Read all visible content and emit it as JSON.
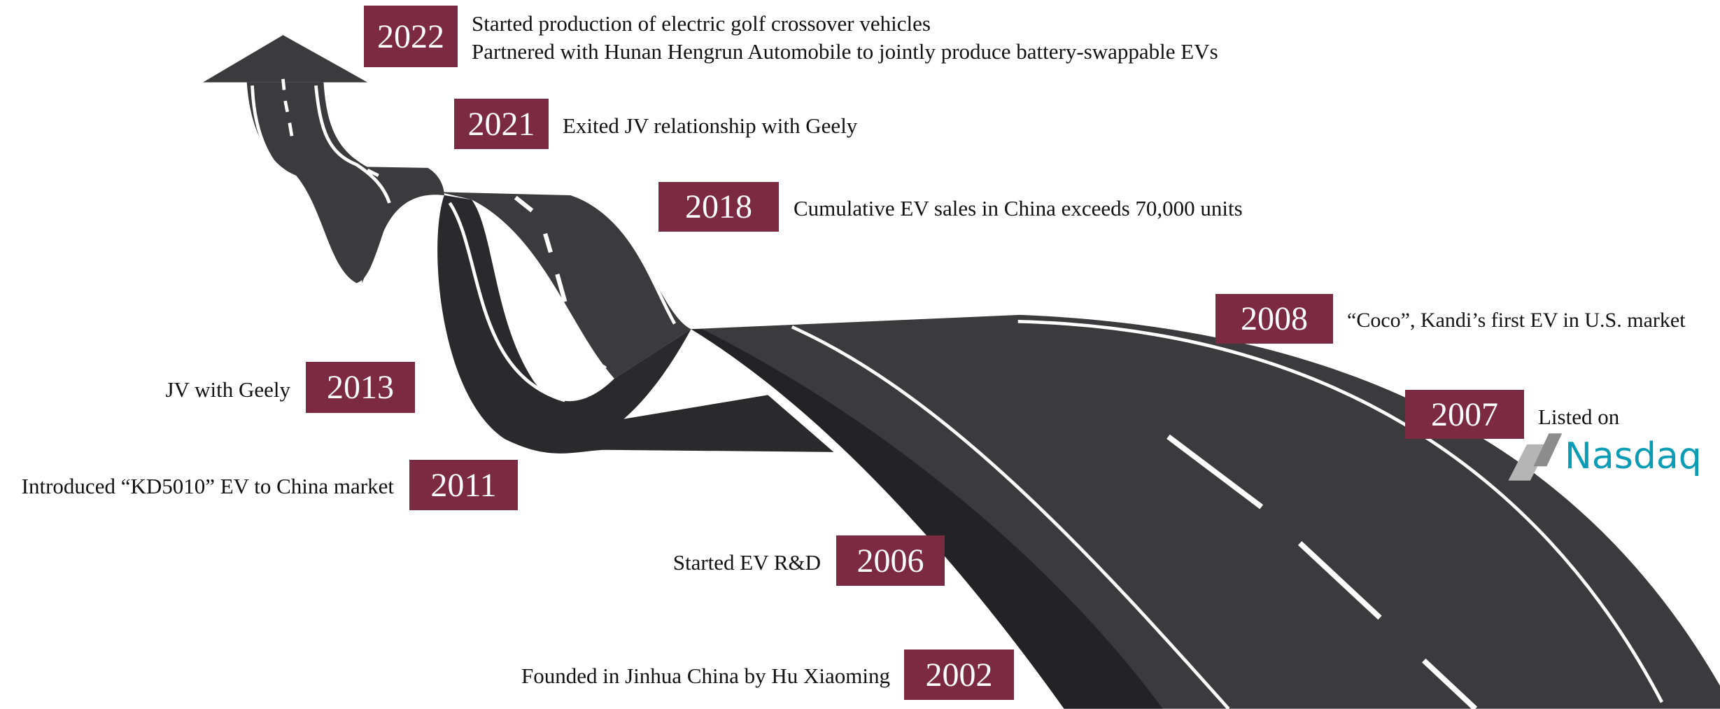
{
  "milestones": [
    {
      "year": "2022",
      "lines": [
        "Started production of electric golf crossover vehicles",
        "Partnered with Hunan Hengrun Automobile to jointly produce battery-swappable EVs"
      ]
    },
    {
      "year": "2021",
      "lines": [
        "Exited JV relationship with Geely"
      ]
    },
    {
      "year": "2018",
      "lines": [
        "Cumulative EV sales in China exceeds 70,000 units"
      ]
    },
    {
      "year": "2008",
      "lines": [
        "“Coco”, Kandi’s first EV in U.S. market"
      ]
    },
    {
      "year": "2007",
      "lines": [
        "Listed on"
      ]
    },
    {
      "year": "2013",
      "lines": [
        "JV with Geely"
      ]
    },
    {
      "year": "2011",
      "lines": [
        "Introduced “KD5010” EV to China market"
      ]
    },
    {
      "year": "2006",
      "lines": [
        "Started EV R&D"
      ]
    },
    {
      "year": "2002",
      "lines": [
        "Founded in Jinhua China by Hu Xiaoming"
      ]
    }
  ],
  "logo": "Nasdaq"
}
